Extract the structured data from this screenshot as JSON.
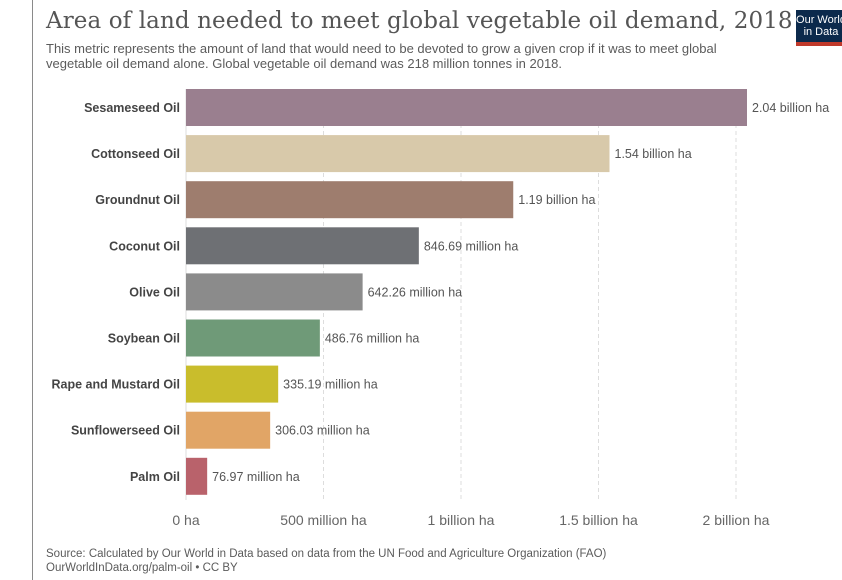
{
  "header": {
    "title": "Area of land needed to meet global vegetable oil demand, 2018",
    "subtitle": "This metric represents the amount of land that would need to be devoted to grow a given crop if it was to meet global vegetable oil demand alone. Global vegetable oil demand was 218 million tonnes in 2018.",
    "logo_line1": "Our World",
    "logo_line2": "in Data"
  },
  "footer": {
    "source": "Source: Calculated by Our World in Data based on data from the UN Food and Agriculture Organization (FAO)",
    "link": "OurWorldInData.org/palm-oil • CC BY"
  },
  "chart_data": {
    "type": "bar",
    "orientation": "horizontal",
    "title": "Area of land needed to meet global vegetable oil demand, 2018",
    "unit": "ha",
    "categories": [
      "Sesameseed Oil",
      "Cottonseed Oil",
      "Groundnut Oil",
      "Coconut Oil",
      "Olive Oil",
      "Soybean Oil",
      "Rape and Mustard Oil",
      "Sunflowerseed Oil",
      "Palm Oil"
    ],
    "values": [
      2040000000,
      1540000000,
      1190000000,
      846690000,
      642260000,
      486760000,
      335190000,
      306030000,
      76970000
    ],
    "value_labels": [
      "2.04 billion ha",
      "1.54 billion ha",
      "1.19 billion ha",
      "846.69 million ha",
      "642.26 million ha",
      "486.76 million ha",
      "335.19 million ha",
      "306.03 million ha",
      "76.97 million ha"
    ],
    "colors": [
      "#9a7f8f",
      "#d8c9aa",
      "#9e7d6e",
      "#6e7074",
      "#8b8b8b",
      "#6f9a78",
      "#c9bd2c",
      "#e1a566",
      "#b9626b"
    ],
    "xlim": [
      0,
      2050000000
    ],
    "x_ticks": [
      0,
      500000000,
      1000000000,
      1500000000,
      2000000000
    ],
    "x_tick_labels": [
      "0 ha",
      "500 million ha",
      "1 billion ha",
      "1.5 billion ha",
      "2 billion ha"
    ],
    "grid": true
  }
}
